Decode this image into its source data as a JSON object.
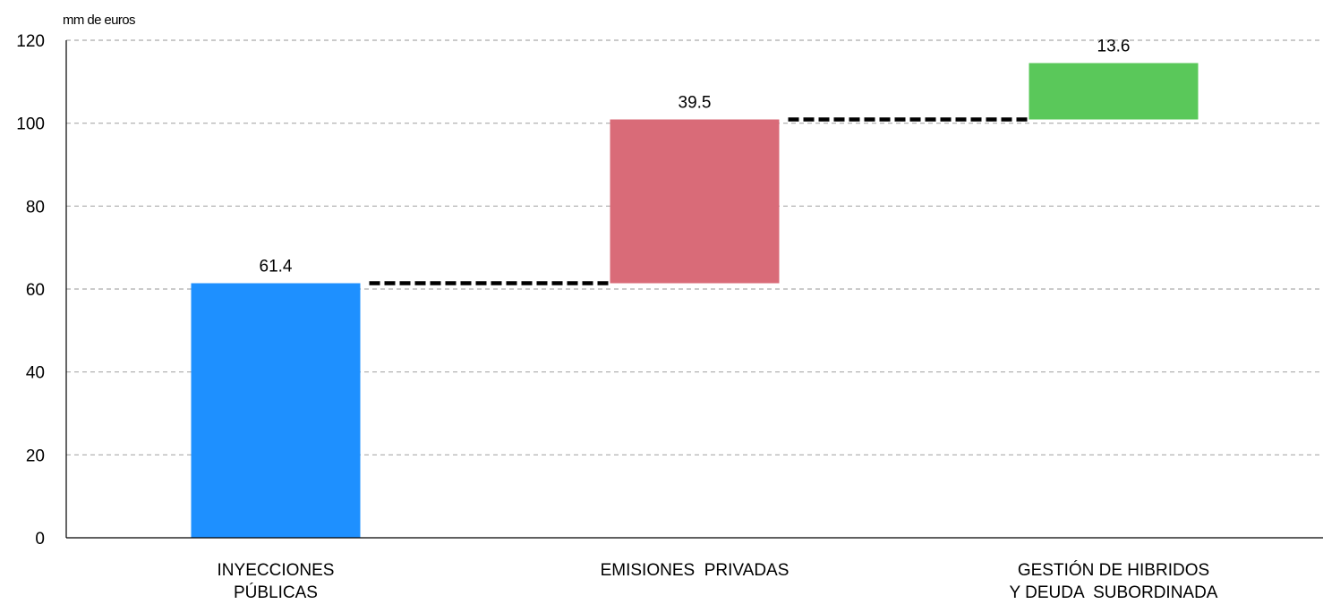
{
  "chart_data": {
    "type": "bar",
    "subtype": "waterfall",
    "ylabel": "mm de euros",
    "ylim": [
      0,
      120
    ],
    "yticks": [
      0,
      20,
      40,
      60,
      80,
      100,
      120
    ],
    "grid": true,
    "grid_style": "dashed",
    "legend": "none",
    "categories": [
      [
        "INYECCIONES",
        "PÚBLICAS"
      ],
      [
        "EMISIONES  PRIVADAS"
      ],
      [
        "GESTIÓN DE HIBRIDOS",
        "Y DEUDA  SUBORDINADA"
      ]
    ],
    "bars": [
      {
        "base": 0,
        "value": 61.4,
        "label": "61.4",
        "color": "#1e90ff"
      },
      {
        "base": 61.4,
        "value": 39.5,
        "label": "39.5",
        "color": "#d96b78"
      },
      {
        "base": 100.9,
        "value": 13.6,
        "label": "13.6",
        "color": "#5ac85a"
      }
    ],
    "connector_color": "#000000",
    "grid_color": "#aaaaaa"
  }
}
